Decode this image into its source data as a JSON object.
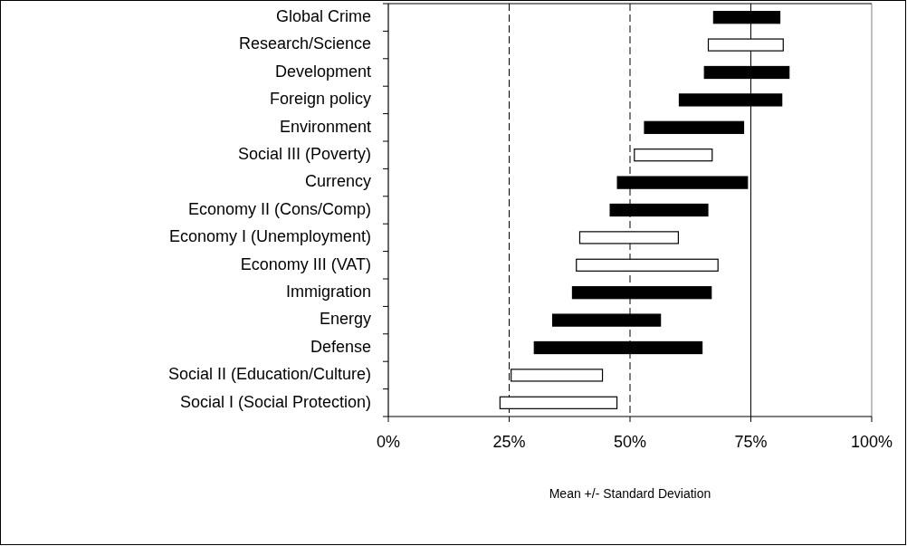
{
  "chart_data": {
    "type": "bar",
    "orientation": "horizontal",
    "xlabel": "Mean +/- Standard Deviation",
    "categories": [
      "Global Crime",
      "Research/Science",
      "Development",
      "Foreign policy",
      "Environment",
      "Social III (Poverty)",
      "Currency",
      "Economy II (Cons/Comp)",
      "Economy I (Unemployment)",
      "Economy III (VAT)",
      "Immigration",
      "Energy",
      "Defense",
      "Social II (Education/Culture)",
      "Social I (Social Protection)"
    ],
    "base": [
      67.3,
      66.2,
      65.4,
      60.2,
      53.0,
      50.9,
      47.4,
      45.9,
      39.6,
      38.9,
      38.1,
      34.0,
      30.2,
      25.4,
      23.1
    ],
    "values": [
      13.7,
      15.5,
      17.5,
      21.2,
      20.5,
      16.1,
      26.9,
      20.2,
      20.4,
      29.3,
      28.7,
      22.3,
      34.7,
      18.9,
      24.2
    ],
    "colors": [
      "#000000",
      "#ffffff",
      "#000000",
      "#000000",
      "#000000",
      "#ffffff",
      "#000000",
      "#000000",
      "#ffffff",
      "#ffffff",
      "#000000",
      "#000000",
      "#000000",
      "#ffffff",
      "#ffffff"
    ],
    "xlim": [
      0,
      100
    ],
    "xticks": [
      {
        "value": 0,
        "label": "0%"
      },
      {
        "value": 25,
        "label": "25%"
      },
      {
        "value": 50,
        "label": "50%"
      },
      {
        "value": 75,
        "label": "75%"
      },
      {
        "value": 100,
        "label": "100%"
      }
    ],
    "ref_lines": [
      {
        "axis": "x",
        "value": 25,
        "line_style": "dashed",
        "color": "#000000"
      },
      {
        "axis": "x",
        "value": 50,
        "line_style": "dashed",
        "color": "#000000"
      },
      {
        "axis": "x",
        "value": 75,
        "line_style": "solid",
        "color": "#000000"
      },
      {
        "axis": "x",
        "value": 100,
        "line_style": "solid",
        "color": "#808080"
      }
    ]
  }
}
